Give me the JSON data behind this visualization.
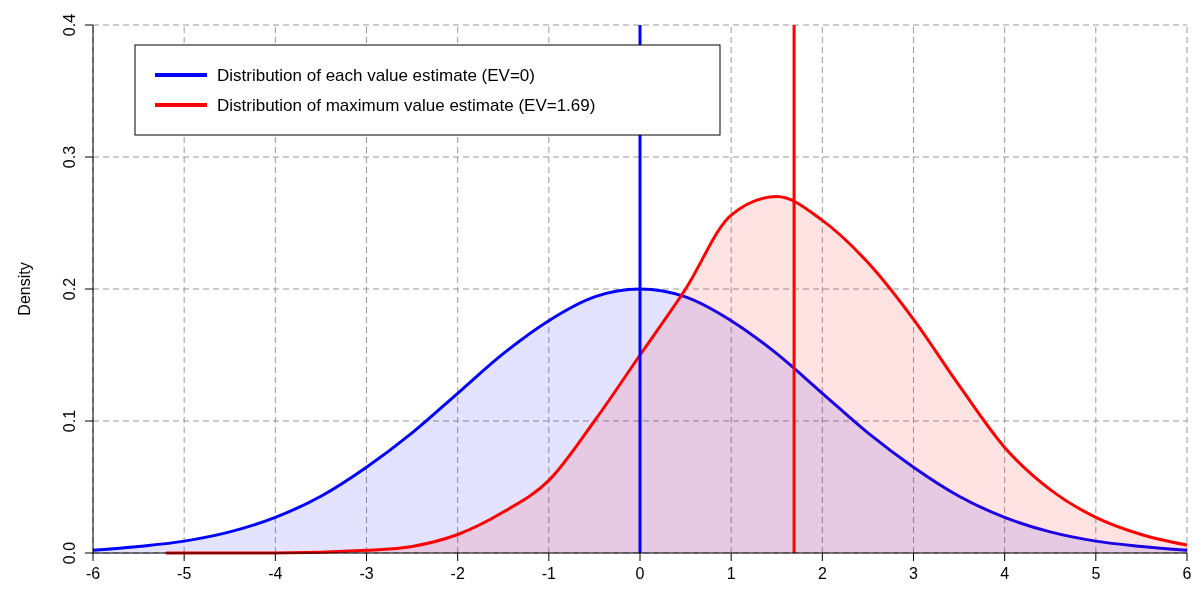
{
  "chart_data": {
    "type": "area",
    "ylabel": "Density",
    "xlim": [
      -6,
      6
    ],
    "ylim": [
      0,
      0.4
    ],
    "xticks": [
      -6,
      -5,
      -4,
      -3,
      -2,
      -1,
      0,
      1,
      2,
      3,
      4,
      5,
      6
    ],
    "yticks": [
      {
        "value": 0,
        "label": "0.0"
      },
      {
        "value": 0.1,
        "label": "0.1"
      },
      {
        "value": 0.2,
        "label": "0.2"
      },
      {
        "value": 0.3,
        "label": "0.3"
      },
      {
        "value": 0.4,
        "label": "0.4"
      }
    ],
    "grid": true,
    "legend": "top left",
    "series": [
      {
        "name": "Distribution of each value estimate (EV=0)",
        "color": "#0000ff",
        "x": [
          -6,
          -5.5,
          -5,
          -4.5,
          -4,
          -3.5,
          -3,
          -2.5,
          -2,
          -1.5,
          -1,
          -0.5,
          0,
          0.5,
          1,
          1.5,
          2,
          2.5,
          3,
          3.5,
          4,
          4.5,
          5,
          5.5,
          6
        ],
        "values": [
          0.002,
          0.005,
          0.009,
          0.016,
          0.027,
          0.043,
          0.065,
          0.091,
          0.121,
          0.151,
          0.176,
          0.194,
          0.2,
          0.194,
          0.176,
          0.151,
          0.121,
          0.091,
          0.065,
          0.043,
          0.027,
          0.016,
          0.009,
          0.005,
          0.002
        ]
      },
      {
        "name": "Distribution of maximum value estimate (EV=1.69)",
        "color": "#ff0000",
        "x": [
          -5.2,
          -4,
          -3,
          -2.5,
          -2,
          -1.5,
          -1,
          -0.5,
          0,
          0.5,
          1,
          1.5,
          2,
          2.5,
          3,
          3.5,
          4,
          4.5,
          5,
          5.5,
          6
        ],
        "values": [
          0,
          0,
          0.002,
          0.005,
          0.014,
          0.031,
          0.055,
          0.1,
          0.15,
          0.2,
          0.256,
          0.27,
          0.252,
          0.22,
          0.177,
          0.127,
          0.08,
          0.048,
          0.027,
          0.014,
          0.006
        ]
      }
    ],
    "ref_lines": [
      {
        "axis": "x",
        "value": 0,
        "color": "#0000ff"
      },
      {
        "axis": "x",
        "value": 1.69,
        "color": "#ff0000"
      }
    ]
  }
}
